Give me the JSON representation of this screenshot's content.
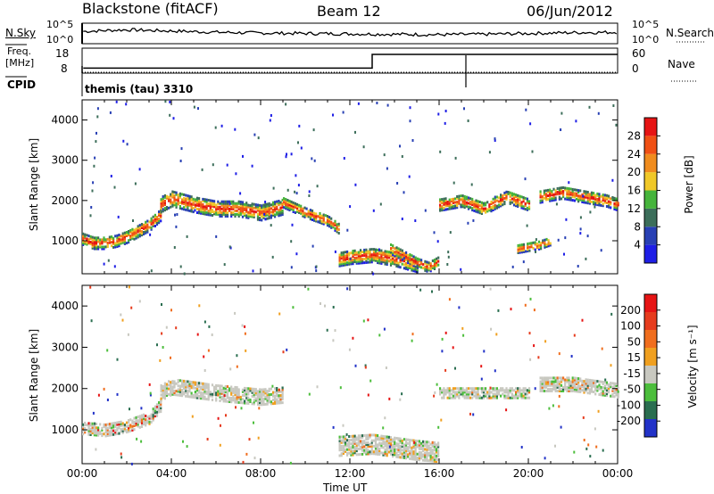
{
  "header": {
    "title": "Blackstone (fitACF)",
    "beam": "Beam 12",
    "date": "06/Jun/2012"
  },
  "noise_panel": {
    "left_label": "N.Sky",
    "left_ticks": [
      "10^5",
      "10^0"
    ],
    "right_label": "N.Search",
    "right_ticks": [
      "10^5",
      "10^0"
    ]
  },
  "freq_panel": {
    "left_label_1": "Freq.",
    "left_label_2": "[MHz]",
    "left_ticks": [
      "18",
      "8"
    ],
    "right_label": "Nave",
    "right_ticks": [
      "60",
      "0"
    ]
  },
  "cpid": {
    "label": "CPID",
    "text": "themis (tau) 3310"
  },
  "x_axis": {
    "label": "Time UT",
    "ticks": [
      "00:00",
      "04:00",
      "08:00",
      "12:00",
      "16:00",
      "20:00",
      "00:00"
    ]
  },
  "colors": {
    "power": [
      "#1e1ee6",
      "#2840b4",
      "#3c6e5a",
      "#46b43c",
      "#f0c828",
      "#f08c1e",
      "#f05014",
      "#e61414"
    ],
    "velocity": [
      "#2232c8",
      "#2a6e50",
      "#4cbe3c",
      "#c8c8c0",
      "#f0a020",
      "#f06e1e",
      "#e63c1e",
      "#e61414"
    ]
  },
  "chart_data": [
    {
      "type": "line",
      "title": "",
      "panel": "noise",
      "ylabel": "N.Sky",
      "ylim": [
        0,
        5
      ],
      "series": [
        {
          "name": "N.Sky",
          "x": [
            0.05,
            1,
            2,
            4,
            6,
            8,
            10,
            12,
            14,
            16,
            18,
            20,
            22,
            24
          ],
          "values": [
            3.0,
            3.2,
            3.4,
            3.1,
            2.8,
            2.6,
            2.5,
            2.4,
            2.3,
            2.2,
            2.3,
            2.5,
            2.7,
            2.8
          ]
        }
      ]
    },
    {
      "type": "line",
      "title": "",
      "panel": "frequency",
      "ylabel": "Freq. [MHz]",
      "ylim": [
        8,
        18
      ],
      "series": [
        {
          "name": "Freq.",
          "x": [
            0.05,
            13,
            13,
            24
          ],
          "values": [
            10,
            10,
            15.5,
            15.5
          ]
        }
      ]
    },
    {
      "type": "heatmap",
      "title": "",
      "panel": "power",
      "xlabel": "Time UT",
      "ylabel": "Slant Range [km]",
      "xlim": [
        0,
        24
      ],
      "ylim": [
        180,
        4500
      ],
      "yticks": [
        "1000",
        "2000",
        "3000",
        "4000"
      ],
      "colorbar": {
        "label": "Power [dB]",
        "ticks": [
          "28",
          "24",
          "20",
          "16",
          "12",
          "8",
          "4"
        ]
      },
      "bands": [
        {
          "x": [
            0,
            0.5,
            1,
            1.5,
            2,
            2.5,
            3,
            3.5
          ],
          "center": [
            1050,
            950,
            950,
            1000,
            1100,
            1250,
            1400,
            1650
          ],
          "width": 300
        },
        {
          "x": [
            3.5,
            4,
            5,
            6,
            7,
            8,
            9
          ],
          "center": [
            1900,
            2050,
            1900,
            1800,
            1800,
            1700,
            1850
          ],
          "width": 380
        },
        {
          "x": [
            9,
            10,
            11,
            11.5
          ],
          "center": [
            1950,
            1700,
            1500,
            1300
          ],
          "width": 250
        },
        {
          "x": [
            11.5,
            12,
            13,
            14,
            15
          ],
          "center": [
            550,
            600,
            650,
            550,
            400
          ],
          "width": 350
        },
        {
          "x": [
            13.8,
            14.5,
            15,
            15.5,
            16
          ],
          "center": [
            800,
            600,
            450,
            350,
            500
          ],
          "width": 250
        },
        {
          "x": [
            16,
            17,
            18,
            19,
            20
          ],
          "center": [
            1900,
            2000,
            1800,
            2100,
            1900
          ],
          "width": 300
        },
        {
          "x": [
            20.5,
            21.5,
            22.5,
            23.5,
            24
          ],
          "center": [
            2100,
            2200,
            2100,
            2000,
            1900
          ],
          "width": 300
        },
        {
          "x": [
            19.5,
            20.5,
            21
          ],
          "center": [
            800,
            900,
            1000
          ],
          "width": 200
        }
      ]
    },
    {
      "type": "heatmap",
      "title": "",
      "panel": "velocity",
      "xlabel": "Time UT",
      "ylabel": "Slant Range [km]",
      "xlim": [
        0,
        24
      ],
      "ylim": [
        180,
        4500
      ],
      "yticks": [
        "1000",
        "2000",
        "3000",
        "4000"
      ],
      "colorbar": {
        "label": "Velocity [m s⁻¹]",
        "ticks": [
          "200",
          "100",
          "50",
          "15",
          "-15",
          "-50",
          "-100",
          "-200"
        ]
      },
      "bands": [
        {
          "x": [
            0,
            1,
            2,
            3,
            3.5
          ],
          "center": [
            1050,
            1000,
            1100,
            1300,
            1600
          ],
          "width": 300
        },
        {
          "x": [
            3.5,
            4,
            6,
            8,
            9
          ],
          "center": [
            1900,
            2050,
            1900,
            1800,
            1850
          ],
          "width": 380
        },
        {
          "x": [
            11.5,
            13,
            15,
            16
          ],
          "center": [
            600,
            650,
            500,
            450
          ],
          "width": 450
        },
        {
          "x": [
            16,
            18,
            20
          ],
          "center": [
            1900,
            1900,
            1900
          ],
          "width": 250
        },
        {
          "x": [
            20.5,
            22,
            24
          ],
          "center": [
            2100,
            2100,
            1950
          ],
          "width": 320
        }
      ]
    }
  ]
}
